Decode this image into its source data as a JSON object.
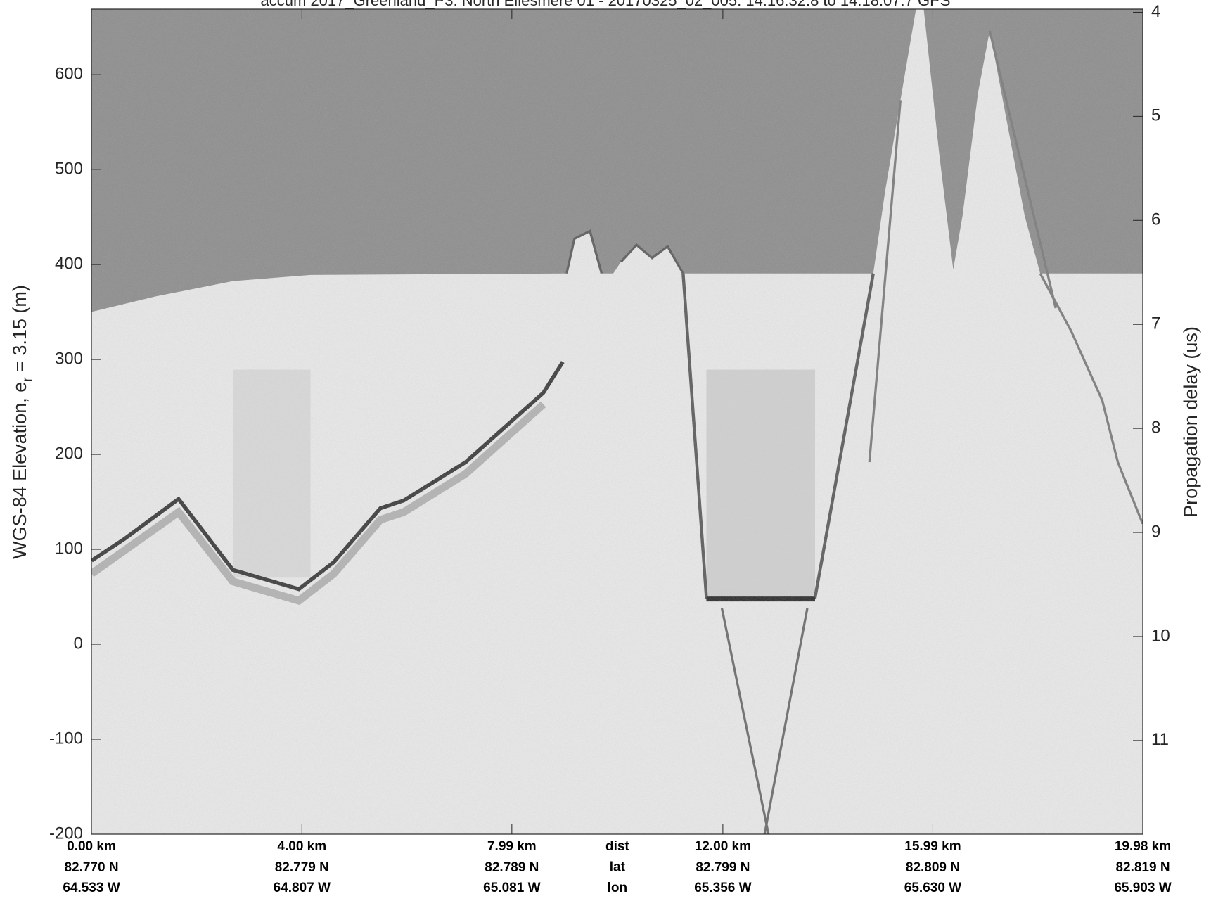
{
  "chart_data": {
    "type": "echogram",
    "title": "accum 2017_Greenland_P3: North Ellesmere 01 - 20170325_02_005: 14:16:32.8 to 14:18:07.7 GPS",
    "ylabel": {
      "text": "WGS-84 Elevation, e",
      "sub": "r",
      "rest": " = 3.15 (m)"
    },
    "y2label": "Propagation delay (us)",
    "ylim": [
      -200,
      669
    ],
    "yticks": [
      -200,
      -100,
      0,
      100,
      200,
      300,
      400,
      500,
      600
    ],
    "y2lim": [
      3.97,
      11.9
    ],
    "y2ticks": [
      4,
      5,
      6,
      7,
      8,
      9,
      10,
      11
    ],
    "xlim": [
      0,
      19.98
    ],
    "xticks": [
      {
        "value": 0,
        "label": "0.00 km"
      },
      {
        "value": 4.0,
        "label": "4.00 km"
      },
      {
        "value": 7.99,
        "label": "7.99 km"
      },
      {
        "value": 12.0,
        "label": "12.00 km"
      },
      {
        "value": 15.99,
        "label": "15.99 km"
      },
      {
        "value": 19.98,
        "label": "19.98 km"
      }
    ],
    "lat_labels": [
      "82.770 N",
      "82.779 N",
      "82.789 N",
      "82.799 N",
      "82.809 N",
      "82.819 N"
    ],
    "lon_labels": [
      "64.533 W",
      "64.807 W",
      "65.081 W",
      "65.356 W",
      "65.630 W",
      "65.903 W"
    ],
    "row_names": [
      "dist",
      "lat",
      "lon"
    ]
  }
}
